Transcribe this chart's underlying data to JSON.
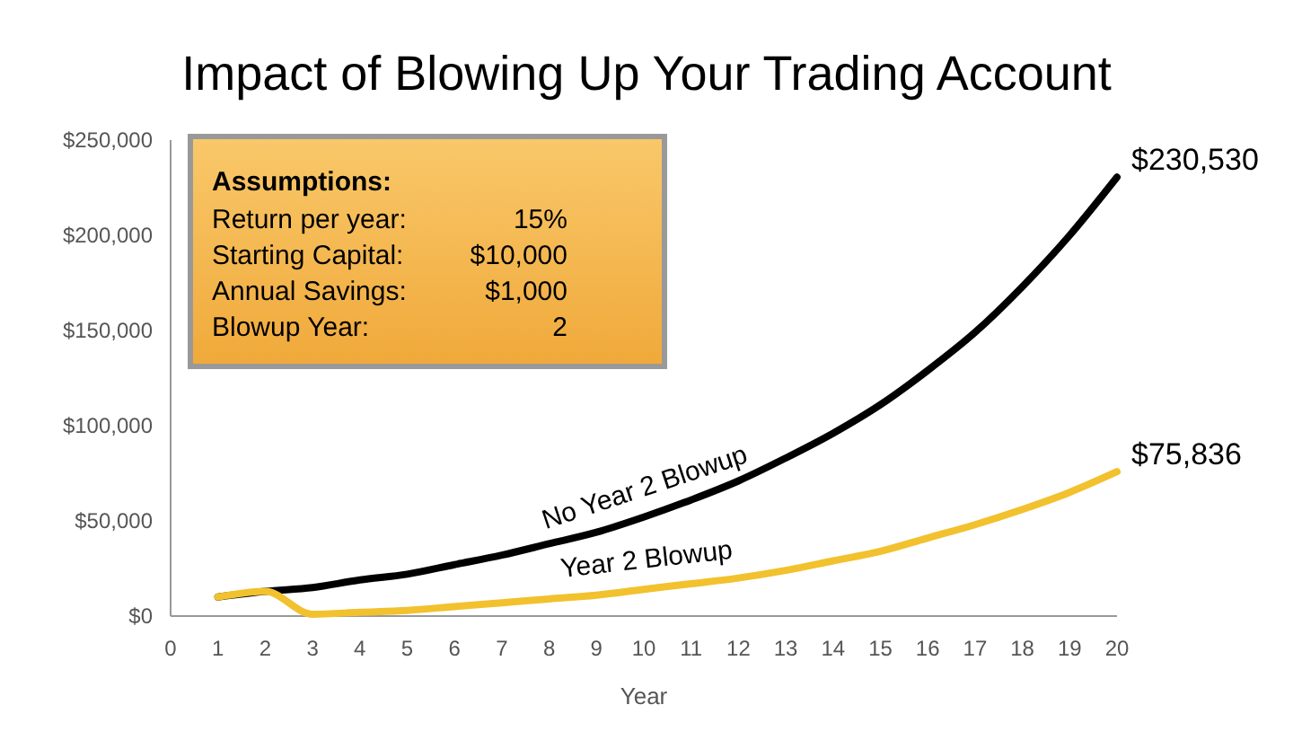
{
  "chart_data": {
    "type": "line",
    "title": "Impact of Blowing Up Your Trading Account",
    "xlabel": "Year",
    "x": [
      1,
      2,
      3,
      4,
      5,
      6,
      7,
      8,
      9,
      10,
      11,
      12,
      13,
      14,
      15,
      16,
      17,
      18,
      19,
      20
    ],
    "series": [
      {
        "name": "No Year 2 Blowup",
        "color": "#000000",
        "values": [
          10000,
          13000,
          15000,
          19000,
          22000,
          27000,
          32000,
          38000,
          44000,
          52000,
          61000,
          71000,
          83000,
          96000,
          111000,
          129000,
          149000,
          173000,
          200000,
          230530
        ],
        "value_labels": [
          null,
          null,
          null,
          null,
          null,
          null,
          null,
          null,
          null,
          null,
          null,
          null,
          null,
          null,
          null,
          null,
          null,
          null,
          null,
          "$230,530"
        ]
      },
      {
        "name": "Year 2 Blowup",
        "color": "#f2c12e",
        "values": [
          10000,
          13000,
          1000,
          2000,
          3000,
          5000,
          7000,
          9000,
          11000,
          14000,
          17000,
          20000,
          24000,
          29000,
          34000,
          41000,
          48000,
          56000,
          65000,
          75836
        ],
        "value_labels": [
          null,
          null,
          null,
          null,
          null,
          null,
          null,
          null,
          null,
          null,
          null,
          null,
          null,
          null,
          null,
          null,
          null,
          null,
          null,
          "$75,836"
        ]
      }
    ],
    "xlim": [
      0,
      20
    ],
    "xticks": [
      0,
      1,
      2,
      3,
      4,
      5,
      6,
      7,
      8,
      9,
      10,
      11,
      12,
      13,
      14,
      15,
      16,
      17,
      18,
      19,
      20
    ],
    "ylim": [
      0,
      250000
    ],
    "yticks": [
      {
        "value": 0,
        "label": "$0"
      },
      {
        "value": 50000,
        "label": "$50,000"
      },
      {
        "value": 100000,
        "label": "$100,000"
      },
      {
        "value": 150000,
        "label": "$150,000"
      },
      {
        "value": 200000,
        "label": "$200,000"
      },
      {
        "value": 250000,
        "label": "$250,000"
      }
    ],
    "grid": false,
    "marker": "none",
    "line_style": "solid",
    "annotations": [
      "Assumptions:",
      "Return per year:",
      "15%",
      "Starting Capital:",
      "$10,000",
      "Annual Savings:",
      "$1,000",
      "Blowup Year:",
      "2"
    ]
  }
}
